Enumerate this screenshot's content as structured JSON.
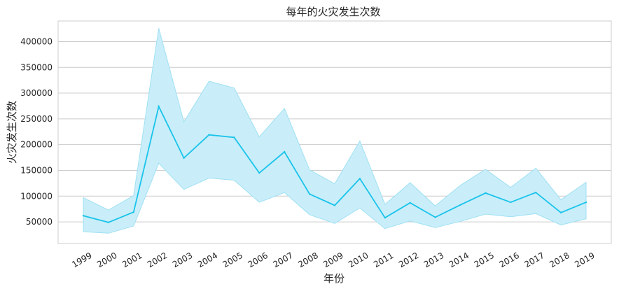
{
  "chart_data": {
    "type": "line",
    "title": "每年的火灾发生次数",
    "xlabel": "年份",
    "ylabel": "火灾发生次数",
    "ylim": [
      8000,
      440000
    ],
    "yticks": [
      50000,
      100000,
      150000,
      200000,
      250000,
      300000,
      350000,
      400000
    ],
    "grid": true,
    "categories": [
      "1999",
      "2000",
      "2001",
      "2002",
      "2003",
      "2004",
      "2005",
      "2006",
      "2007",
      "2008",
      "2009",
      "2010",
      "2011",
      "2012",
      "2013",
      "2014",
      "2015",
      "2016",
      "2017",
      "2018",
      "2019"
    ],
    "series": [
      {
        "values": [
          62000,
          49000,
          69000,
          274000,
          174000,
          219000,
          214000,
          145000,
          186000,
          104000,
          82000,
          134000,
          58000,
          87000,
          59000,
          83000,
          106000,
          88000,
          107000,
          68000,
          88000
        ],
        "ci_lower": [
          31000,
          28000,
          42000,
          164000,
          113000,
          135000,
          131000,
          88000,
          107000,
          64000,
          47000,
          77000,
          37000,
          52000,
          39000,
          51000,
          65000,
          60000,
          66000,
          44000,
          56000
        ],
        "ci_upper": [
          97000,
          73000,
          101000,
          426000,
          244000,
          323000,
          310000,
          215000,
          270000,
          151000,
          124000,
          207000,
          84000,
          126000,
          81000,
          121000,
          152000,
          117000,
          154000,
          93000,
          127000
        ]
      }
    ],
    "colors": {
      "line": "#1ac3eb",
      "band": "#c9eef9",
      "band_edge": "#9fe0f3"
    }
  }
}
